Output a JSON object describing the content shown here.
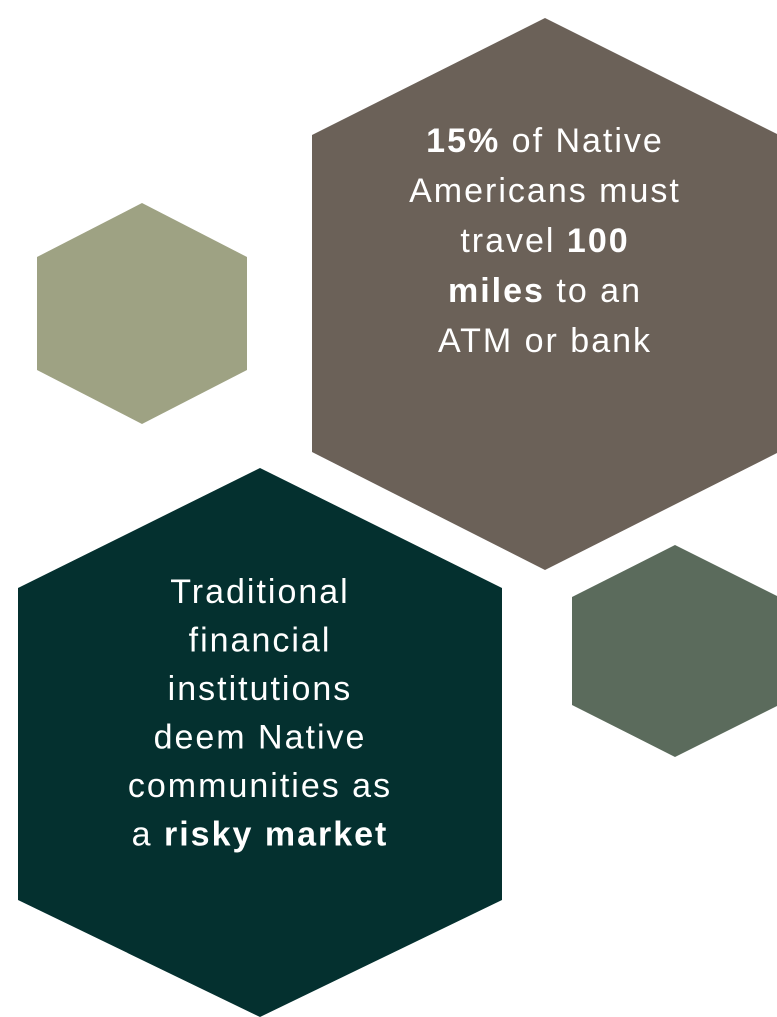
{
  "hexagons": [
    {
      "lines": [
        [
          {
            "text": "15%",
            "bold": true
          },
          {
            "text": " of Native"
          }
        ],
        [
          {
            "text": "Americans must"
          }
        ],
        [
          {
            "text": "travel "
          },
          {
            "text": "100",
            "bold": true
          }
        ],
        [
          {
            "text": "miles",
            "bold": true
          },
          {
            "text": " to an"
          }
        ],
        [
          {
            "text": "ATM or bank"
          }
        ]
      ]
    },
    {
      "lines": [
        [
          {
            "text": "Traditional"
          }
        ],
        [
          {
            "text": "financial"
          }
        ],
        [
          {
            "text": "institutions"
          }
        ],
        [
          {
            "text": "deem Native"
          }
        ],
        [
          {
            "text": "communities as"
          }
        ],
        [
          {
            "text": "a "
          },
          {
            "text": "risky market",
            "bold": true
          }
        ]
      ]
    }
  ]
}
